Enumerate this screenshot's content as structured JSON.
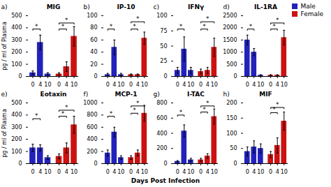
{
  "chart_data": [
    {
      "type": "bar",
      "title": "MIG",
      "ylabel": "pg / ml of Plasma",
      "categories": [
        "0",
        "4",
        "10",
        "0",
        "4",
        "10"
      ],
      "series": [
        {
          "name": "Male",
          "color": "#2222bb",
          "values": [
            30,
            280,
            20,
            null,
            null,
            null
          ],
          "errors": [
            15,
            60,
            10,
            null,
            null,
            null
          ]
        },
        {
          "name": "Female",
          "color": "#cc1111",
          "values": [
            null,
            null,
            null,
            20,
            80,
            330
          ],
          "errors": [
            null,
            null,
            null,
            10,
            40,
            80
          ]
        }
      ],
      "ylim": [
        0,
        500
      ],
      "yticks": [
        0,
        100,
        200,
        300,
        400,
        500
      ],
      "grid": false,
      "annotations": [
        {
          "text": "a)"
        },
        {
          "text": "*",
          "x1": 0,
          "x2": 1,
          "y": 390
        },
        {
          "text": "*",
          "x1": 3,
          "x2": 4,
          "y": 390
        },
        {
          "text": "*",
          "x1": 3,
          "x2": 5,
          "y": 440
        }
      ]
    },
    {
      "type": "bar",
      "title": "IP-10",
      "categories": [
        "0",
        "4",
        "10",
        "0",
        "4",
        "10"
      ],
      "series": [
        {
          "name": "Male",
          "color": "#2222bb",
          "values": [
            3,
            48,
            3,
            null,
            null,
            null
          ],
          "errors": [
            2,
            12,
            2,
            null,
            null,
            null
          ]
        },
        {
          "name": "Female",
          "color": "#cc1111",
          "values": [
            null,
            null,
            null,
            3,
            3,
            63
          ],
          "errors": [
            null,
            null,
            null,
            1,
            1,
            10
          ]
        }
      ],
      "ylim": [
        0,
        100
      ],
      "yticks": [
        0,
        20,
        40,
        60,
        80,
        100
      ],
      "grid": false,
      "annotations": [
        {
          "text": "b)"
        },
        {
          "text": "*",
          "x1": 0,
          "x2": 1,
          "y": 78
        },
        {
          "text": "*",
          "x1": 3,
          "x2": 4,
          "y": 78
        },
        {
          "text": "*",
          "x1": 3,
          "x2": 5,
          "y": 90
        }
      ]
    },
    {
      "type": "bar",
      "title": "IFNγ",
      "categories": [
        "0",
        "4",
        "10",
        "0",
        "4",
        "10"
      ],
      "series": [
        {
          "name": "Male",
          "color": "#2222bb",
          "values": [
            10,
            45,
            10,
            null,
            null,
            null
          ],
          "errors": [
            5,
            20,
            5,
            null,
            null,
            null
          ]
        },
        {
          "name": "Female",
          "color": "#cc1111",
          "values": [
            null,
            null,
            null,
            8,
            10,
            48
          ],
          "errors": [
            null,
            null,
            null,
            4,
            5,
            15
          ]
        }
      ],
      "ylim": [
        0,
        100
      ],
      "yticks": [
        0,
        25,
        50,
        75,
        100
      ],
      "grid": false,
      "annotations": [
        {
          "text": "c)"
        },
        {
          "text": "*",
          "x1": 0,
          "x2": 1,
          "y": 78
        },
        {
          "text": "*",
          "x1": 3,
          "x2": 4,
          "y": 78
        },
        {
          "text": "*",
          "x1": 3,
          "x2": 5,
          "y": 90
        }
      ]
    },
    {
      "type": "bar",
      "title": "IL-1RA",
      "legend": "upper right",
      "categories": [
        "0",
        "4",
        "10",
        "0",
        "4",
        "10"
      ],
      "series": [
        {
          "name": "Male",
          "color": "#2222bb",
          "values": [
            1500,
            1000,
            50,
            null,
            null,
            null
          ],
          "errors": [
            200,
            150,
            20,
            null,
            null,
            null
          ]
        },
        {
          "name": "Female",
          "color": "#cc1111",
          "values": [
            null,
            null,
            null,
            50,
            50,
            1600
          ],
          "errors": [
            null,
            null,
            null,
            20,
            20,
            300
          ]
        }
      ],
      "ylim": [
        0,
        2500
      ],
      "yticks": [
        0,
        500,
        1000,
        1500,
        2000,
        2500
      ],
      "grid": false,
      "annotations": [
        {
          "text": "d)"
        },
        {
          "text": "*",
          "x1": 0,
          "x2": 1,
          "y": 1950
        },
        {
          "text": "*",
          "x1": 3,
          "x2": 4,
          "y": 1950
        },
        {
          "text": "*",
          "x1": 3,
          "x2": 5,
          "y": 2200
        }
      ]
    },
    {
      "type": "bar",
      "title": "Eotaxin",
      "ylabel": "pg / ml of Plasma",
      "xlabel": "Days Post Infection",
      "categories": [
        "0",
        "4",
        "10",
        "0",
        "4",
        "10"
      ],
      "series": [
        {
          "name": "Male",
          "color": "#2222bb",
          "values": [
            130,
            130,
            50,
            null,
            null,
            null
          ],
          "errors": [
            30,
            25,
            15,
            null,
            null,
            null
          ]
        },
        {
          "name": "Female",
          "color": "#cc1111",
          "values": [
            null,
            null,
            null,
            60,
            130,
            320
          ],
          "errors": [
            null,
            null,
            null,
            20,
            40,
            70
          ]
        }
      ],
      "ylim": [
        0,
        500
      ],
      "yticks": [
        0,
        100,
        200,
        300,
        400,
        500
      ],
      "grid": false,
      "annotations": [
        {
          "text": "e)"
        },
        {
          "text": "*",
          "x1": 0,
          "x2": 1,
          "y": 370
        },
        {
          "text": "*",
          "x1": 3,
          "x2": 4,
          "y": 390
        },
        {
          "text": "*",
          "x1": 3,
          "x2": 5,
          "y": 440
        }
      ]
    },
    {
      "type": "bar",
      "title": "MCP-1",
      "categories": [
        "0",
        "4",
        "10",
        "0",
        "4",
        "10"
      ],
      "series": [
        {
          "name": "Male",
          "color": "#2222bb",
          "values": [
            175,
            520,
            100,
            null,
            null,
            null
          ],
          "errors": [
            50,
            80,
            30,
            null,
            null,
            null
          ]
        },
        {
          "name": "Female",
          "color": "#cc1111",
          "values": [
            null,
            null,
            null,
            100,
            175,
            830
          ],
          "errors": [
            null,
            null,
            null,
            30,
            50,
            130
          ]
        }
      ],
      "ylim": [
        0,
        1000
      ],
      "yticks": [
        0,
        200,
        400,
        600,
        800,
        1000
      ],
      "grid": false,
      "annotations": [
        {
          "text": "f)"
        },
        {
          "text": "*",
          "x1": 0,
          "x2": 1,
          "y": 780
        },
        {
          "text": "*",
          "x1": 3,
          "x2": 4,
          "y": 830
        },
        {
          "text": "*",
          "x1": 3,
          "x2": 5,
          "y": 950
        }
      ]
    },
    {
      "type": "bar",
      "title": "I-TAC",
      "categories": [
        "0",
        "4",
        "10",
        "0",
        "4",
        "10"
      ],
      "series": [
        {
          "name": "Male",
          "color": "#2222bb",
          "values": [
            30,
            430,
            50,
            null,
            null,
            null
          ],
          "errors": [
            10,
            80,
            20,
            null,
            null,
            null
          ]
        },
        {
          "name": "Female",
          "color": "#cc1111",
          "values": [
            null,
            null,
            null,
            50,
            100,
            620
          ],
          "errors": [
            null,
            null,
            null,
            20,
            30,
            100
          ]
        }
      ],
      "ylim": [
        0,
        800
      ],
      "yticks": [
        0,
        200,
        400,
        600,
        800
      ],
      "grid": false,
      "annotations": [
        {
          "text": "g)"
        },
        {
          "text": "*",
          "x1": 0,
          "x2": 1,
          "y": 640
        },
        {
          "text": "*",
          "x1": 3,
          "x2": 4,
          "y": 680
        },
        {
          "text": "*",
          "x1": 3,
          "x2": 5,
          "y": 760
        }
      ]
    },
    {
      "type": "bar",
      "title": "MIF",
      "categories": [
        "0",
        "4",
        "10",
        "0",
        "4",
        "10"
      ],
      "series": [
        {
          "name": "Male",
          "color": "#2222bb",
          "values": [
            40,
            55,
            50,
            null,
            null,
            null
          ],
          "errors": [
            15,
            20,
            15,
            null,
            null,
            null
          ]
        },
        {
          "name": "Female",
          "color": "#cc1111",
          "values": [
            null,
            null,
            null,
            30,
            60,
            140
          ],
          "errors": [
            null,
            null,
            null,
            10,
            25,
            30
          ]
        }
      ],
      "ylim": [
        0,
        200
      ],
      "yticks": [
        0,
        50,
        100,
        150,
        200
      ],
      "grid": false,
      "annotations": [
        {
          "text": "h)"
        },
        {
          "text": "*",
          "x1": 3,
          "x2": 4,
          "y": 168
        },
        {
          "text": "*",
          "x1": 3,
          "x2": 5,
          "y": 185
        }
      ]
    }
  ]
}
